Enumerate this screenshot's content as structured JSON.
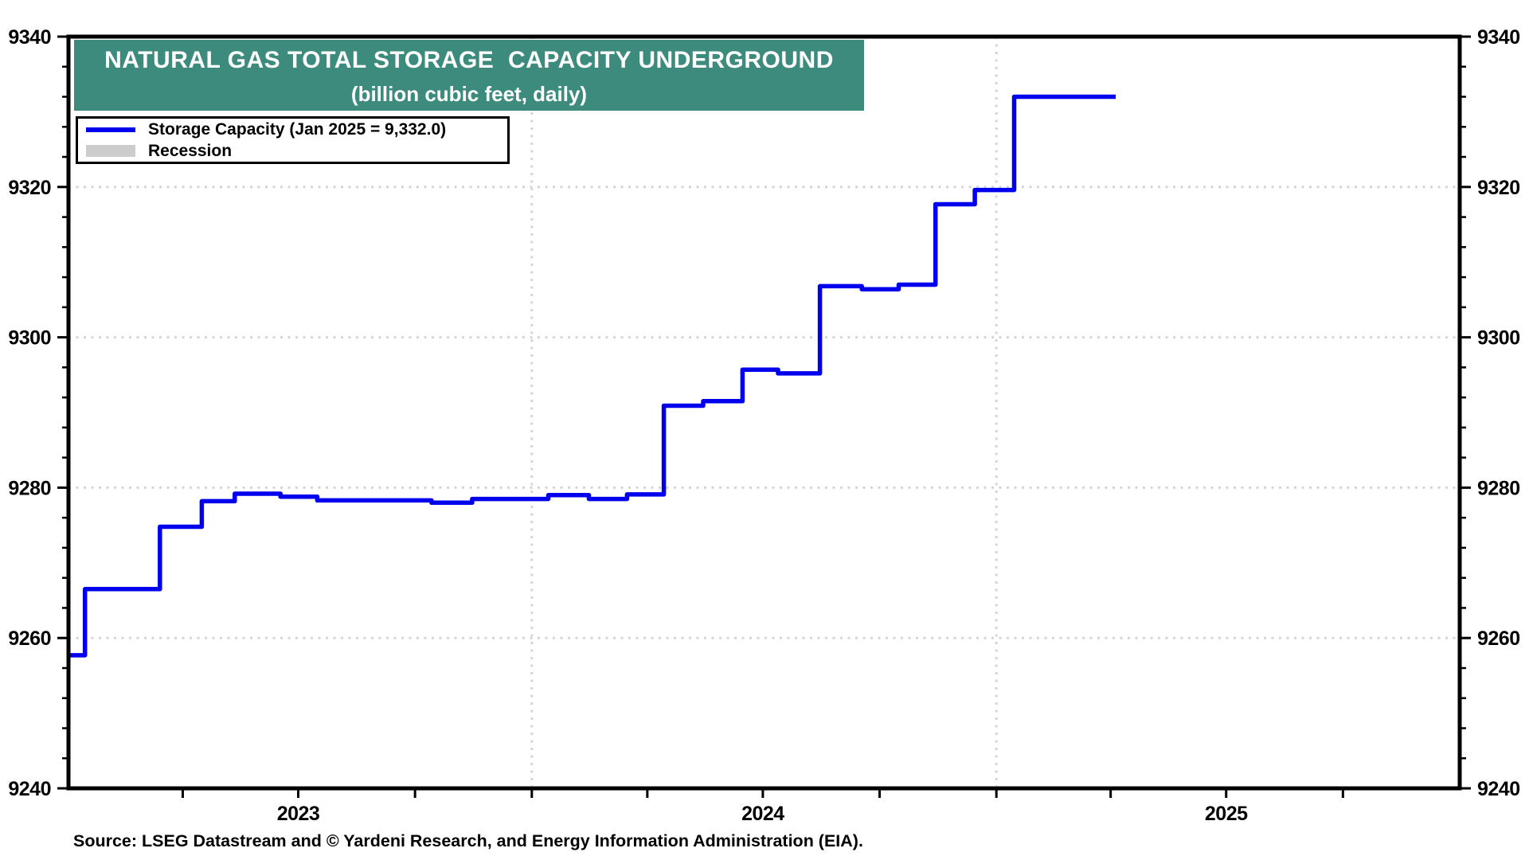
{
  "title": {
    "line1": "NATURAL GAS TOTAL STORAGE  CAPACITY UNDERGROUND",
    "line2": "(billion cubic feet, daily)",
    "banner_color": "#3d8b7d",
    "text_color": "#ffffff"
  },
  "legend": {
    "items": [
      {
        "label": "Storage Capacity (Jan 2025 = 9,332.0)",
        "swatch": "line",
        "color": "#0000ee"
      },
      {
        "label": "Recession",
        "swatch": "box",
        "color": "#cccccc"
      }
    ]
  },
  "source": "Source: LSEG Datastream and © Yardeni Research, and Energy Information Administration (EIA).",
  "chart_data": {
    "type": "line",
    "step": true,
    "title": "NATURAL GAS TOTAL STORAGE  CAPACITY UNDERGROUND",
    "subtitle": "(billion cubic feet, daily)",
    "ylabel": "billion cubic feet",
    "xlabel": "",
    "ylim": [
      9240,
      9340
    ],
    "y_major_ticks": [
      9240,
      9260,
      9280,
      9300,
      9320,
      9340
    ],
    "y_minor_step": 4,
    "y_gridlines": [
      9260,
      9280,
      9300,
      9320
    ],
    "x_range": [
      "2023-01-01",
      "2026-01-01"
    ],
    "x_quarter_ticks": [
      "2023-04-01",
      "2023-07-01",
      "2023-10-01",
      "2024-01-01",
      "2024-04-01",
      "2024-07-01",
      "2024-10-01",
      "2025-01-01",
      "2025-04-01",
      "2025-07-01",
      "2025-10-01"
    ],
    "x_year_labels": [
      {
        "label": "2023",
        "date": "2023-07-01"
      },
      {
        "label": "2024",
        "date": "2024-07-01"
      },
      {
        "label": "2025",
        "date": "2025-07-01"
      }
    ],
    "x_gridline_dates": [
      "2024-01-01",
      "2025-01-01"
    ],
    "grid_style": "dotted",
    "grid_color": "#d5d5d5",
    "line_color": "#0000ee",
    "legend_position": "top-left",
    "series": [
      {
        "name": "Storage Capacity (Jan 2025 = 9,332.0)",
        "points": [
          [
            "2023-01-01",
            9257.7
          ],
          [
            "2023-01-14",
            9266.5
          ],
          [
            "2023-03-14",
            9274.8
          ],
          [
            "2023-04-16",
            9278.2
          ],
          [
            "2023-05-12",
            9279.2
          ],
          [
            "2023-06-17",
            9278.8
          ],
          [
            "2023-07-16",
            9278.3
          ],
          [
            "2023-10-14",
            9278.0
          ],
          [
            "2023-11-15",
            9278.5
          ],
          [
            "2024-01-14",
            9279.0
          ],
          [
            "2024-02-15",
            9278.5
          ],
          [
            "2024-03-16",
            9279.1
          ],
          [
            "2024-04-14",
            9290.9
          ],
          [
            "2024-05-15",
            9291.5
          ],
          [
            "2024-06-15",
            9295.7
          ],
          [
            "2024-07-13",
            9295.2
          ],
          [
            "2024-08-15",
            9306.8
          ],
          [
            "2024-09-17",
            9306.4
          ],
          [
            "2024-10-16",
            9307.0
          ],
          [
            "2024-11-14",
            9317.7
          ],
          [
            "2024-12-15",
            9319.6
          ],
          [
            "2025-01-15",
            9332.0
          ],
          [
            "2025-04-05",
            9332.0
          ]
        ]
      }
    ]
  }
}
